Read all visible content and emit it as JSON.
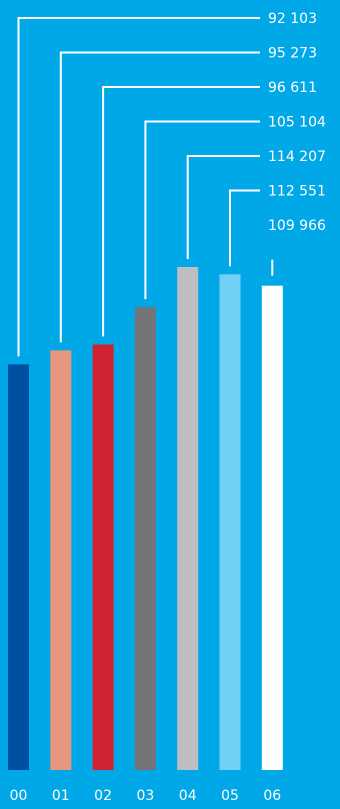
{
  "chart_data": {
    "type": "bar",
    "categories": [
      "00",
      "01",
      "02",
      "03",
      "04",
      "05",
      "06"
    ],
    "values": [
      92103,
      95273,
      96611,
      105104,
      114207,
      112551,
      109966
    ],
    "value_labels": [
      "92 103",
      "95 273",
      "96 611",
      "105 104",
      "114 207",
      "112 551",
      "109 966"
    ],
    "colors": [
      "#0050a0",
      "#e8977e",
      "#d02230",
      "#757578",
      "#bebec0",
      "#72cff5",
      "#ffffff"
    ],
    "title": "",
    "xlabel": "",
    "ylabel": "",
    "ylim": [
      0,
      114207
    ],
    "grid": false,
    "legend": "none",
    "background": "#00a8e8",
    "text_color": "#ffffff"
  }
}
